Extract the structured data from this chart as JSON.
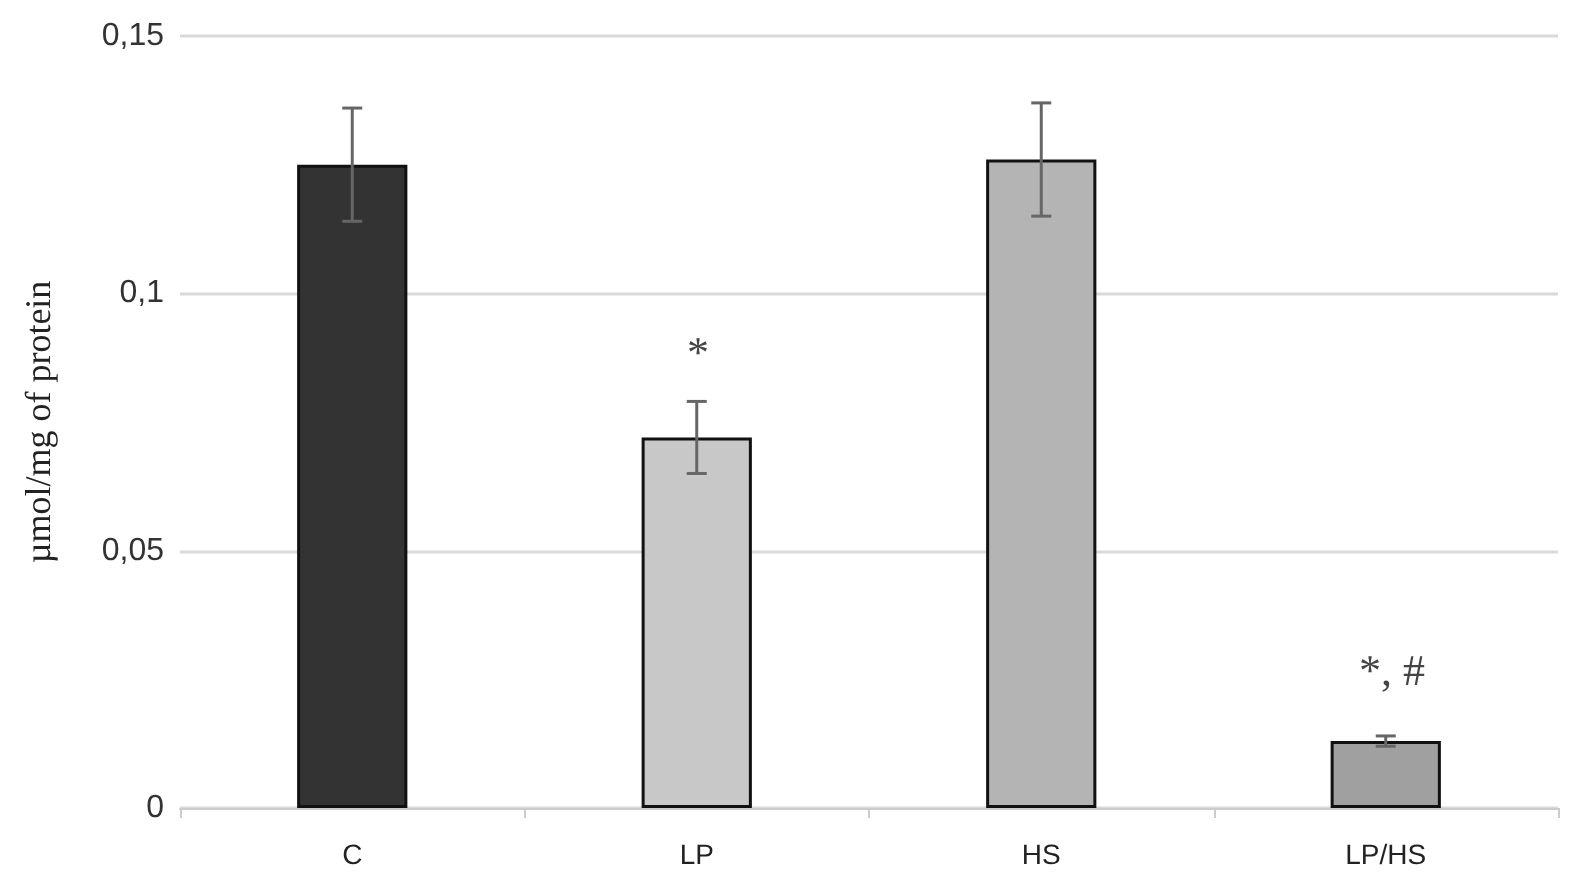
{
  "chart_data": {
    "type": "bar",
    "ylabel": "µmol/mg of protein",
    "categories": [
      "C",
      "LP",
      "HS",
      "LP/HS"
    ],
    "values": [
      0.125,
      0.072,
      0.126,
      0.013
    ],
    "errors": [
      0.011,
      0.007,
      0.011,
      0.001
    ],
    "colors": [
      "#333333",
      "#c8c8c8",
      "#b4b4b4",
      "#a0a0a0"
    ],
    "ylim": [
      0,
      0.15
    ],
    "yticks": [
      {
        "value": 0,
        "label": "0"
      },
      {
        "value": 0.05,
        "label": "0,05"
      },
      {
        "value": 0.1,
        "label": "0,1"
      },
      {
        "value": 0.15,
        "label": "0,15"
      }
    ],
    "grid": "y",
    "annotations": [
      "*",
      "*, #"
    ]
  }
}
